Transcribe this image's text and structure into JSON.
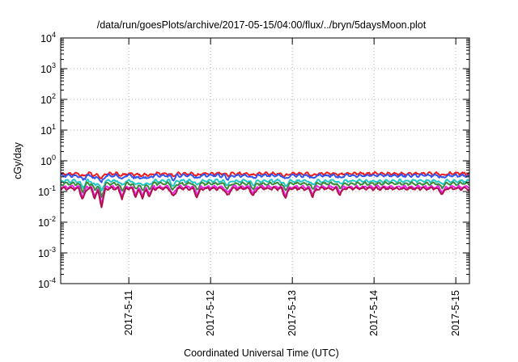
{
  "chart_data": {
    "type": "line",
    "title": "/data/run/goesPlots/archive/2017-05-15/04:00/flux/../bryn/5daysMoon.plot",
    "xlabel": "Coordinated Universal Time (UTC)",
    "ylabel": "cGy/day",
    "yscale": "log",
    "ylim": [
      0.0001,
      10000
    ],
    "y_ticks": [
      {
        "value": 0.0001,
        "base": "10",
        "exp": "-4"
      },
      {
        "value": 0.001,
        "base": "10",
        "exp": "-3"
      },
      {
        "value": 0.01,
        "base": "10",
        "exp": "-2"
      },
      {
        "value": 0.1,
        "base": "10",
        "exp": "-1"
      },
      {
        "value": 1,
        "base": "10",
        "exp": "0"
      },
      {
        "value": 10,
        "base": "10",
        "exp": "1"
      },
      {
        "value": 100,
        "base": "10",
        "exp": "2"
      },
      {
        "value": 1000,
        "base": "10",
        "exp": "3"
      },
      {
        "value": 10000,
        "base": "10",
        "exp": "4"
      }
    ],
    "x_range": [
      "2017-05-10T04:00",
      "2017-05-15T04:00"
    ],
    "x_ticks": [
      "2017-5-11",
      "2017-5-12",
      "2017-5-13",
      "2017-5-14",
      "2017-5-15"
    ],
    "grid": true,
    "legend": "none",
    "series": [
      {
        "color": "#ee1c1c",
        "baseline": 0.38
      },
      {
        "color": "#3355ee",
        "baseline": 0.33
      },
      {
        "color": "#22c8c8",
        "baseline": 0.22
      },
      {
        "color": "#3a8a3a",
        "baseline": 0.18
      },
      {
        "color": "#ee22ee",
        "baseline": 0.14
      },
      {
        "color": "#b0124a",
        "baseline": 0.125
      }
    ],
    "dips": [
      {
        "x": "2017-05-10T10:30",
        "min": 0.06
      },
      {
        "x": "2017-05-10T14:00",
        "min": 0.07
      },
      {
        "x": "2017-05-10T16:00",
        "min": 0.035
      },
      {
        "x": "2017-05-10T22:00",
        "min": 0.07
      },
      {
        "x": "2017-05-11T02:00",
        "min": 0.08
      },
      {
        "x": "2017-05-11T04:00",
        "min": 0.07
      },
      {
        "x": "2017-05-11T06:00",
        "min": 0.08
      },
      {
        "x": "2017-05-11T13:00",
        "min": 0.07
      },
      {
        "x": "2017-05-11T20:00",
        "min": 0.075
      },
      {
        "x": "2017-05-12T05:00",
        "min": 0.08
      },
      {
        "x": "2017-05-12T12:30",
        "min": 0.08
      },
      {
        "x": "2017-05-12T22:00",
        "min": 0.07
      },
      {
        "x": "2017-05-13T06:00",
        "min": 0.08
      },
      {
        "x": "2017-05-13T14:00",
        "min": 0.09
      },
      {
        "x": "2017-05-14T20:00",
        "min": 0.09
      }
    ]
  }
}
